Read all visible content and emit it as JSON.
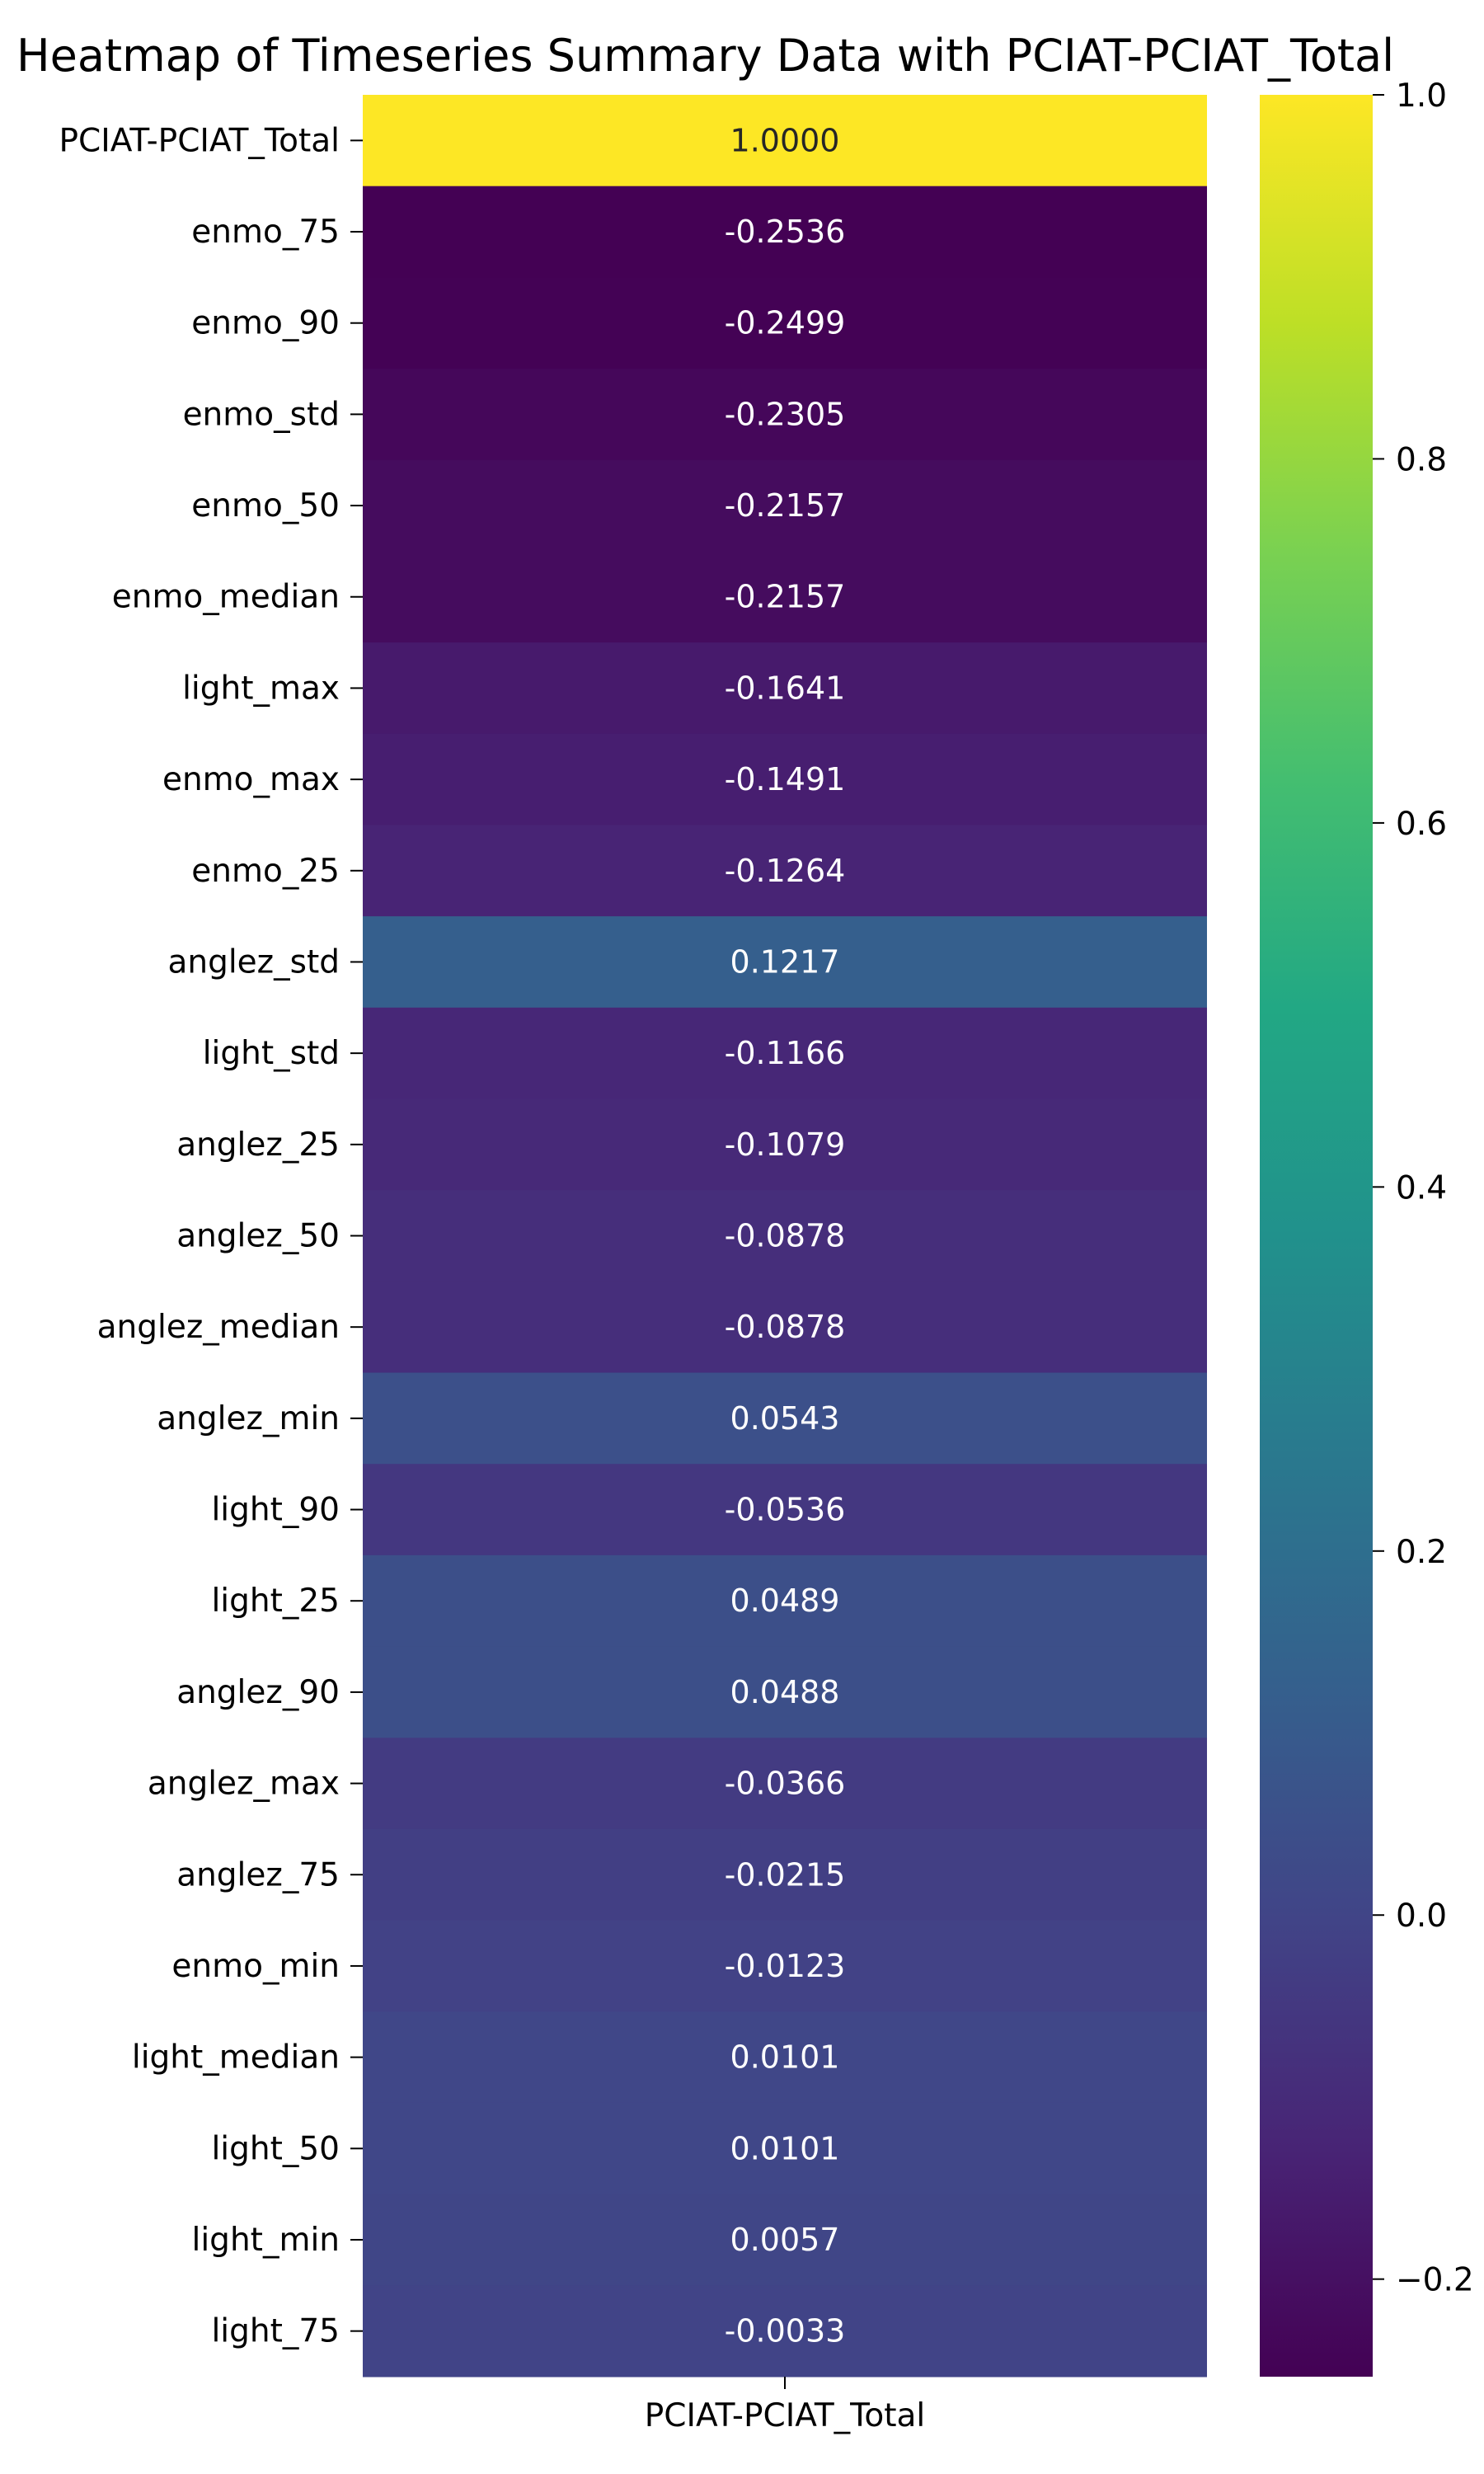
{
  "chart_data": {
    "type": "heatmap",
    "title": "Heatmap of Timeseries Summary Data with PCIAT-PCIAT_Total",
    "xlabel": "",
    "ylabel": "",
    "columns": [
      "PCIAT-PCIAT_Total"
    ],
    "rows": [
      "PCIAT-PCIAT_Total",
      "enmo_75",
      "enmo_90",
      "enmo_std",
      "enmo_50",
      "enmo_median",
      "light_max",
      "enmo_max",
      "enmo_25",
      "anglez_std",
      "light_std",
      "anglez_25",
      "anglez_50",
      "anglez_median",
      "anglez_min",
      "light_90",
      "light_25",
      "anglez_90",
      "anglez_max",
      "anglez_75",
      "enmo_min",
      "light_median",
      "light_50",
      "light_min",
      "light_75"
    ],
    "values": [
      1.0,
      -0.2536,
      -0.2499,
      -0.2305,
      -0.2157,
      -0.2157,
      -0.1641,
      -0.1491,
      -0.1264,
      0.1217,
      -0.1166,
      -0.1079,
      -0.0878,
      -0.0878,
      0.0543,
      -0.0536,
      0.0489,
      0.0488,
      -0.0366,
      -0.0215,
      -0.0123,
      0.0101,
      0.0101,
      0.0057,
      -0.0033
    ],
    "value_labels": [
      "1.0000",
      "-0.2536",
      "-0.2499",
      "-0.2305",
      "-0.2157",
      "-0.2157",
      "-0.1641",
      "-0.1491",
      "-0.1264",
      "0.1217",
      "-0.1166",
      "-0.1079",
      "-0.0878",
      "-0.0878",
      "0.0543",
      "-0.0536",
      "0.0489",
      "0.0488",
      "-0.0366",
      "-0.0215",
      "-0.0123",
      "0.0101",
      "0.0101",
      "0.0057",
      "-0.0033"
    ],
    "colormap": "viridis",
    "color_range": [
      -0.2536,
      1.0
    ],
    "colorbar_ticks": [
      -0.2,
      0.0,
      0.2,
      0.4,
      0.6,
      0.8,
      1.0
    ],
    "colorbar_tick_labels": [
      "−0.2",
      "0.0",
      "0.2",
      "0.4",
      "0.6",
      "0.8",
      "1.0"
    ],
    "grid": false,
    "legend": "colorbar-right"
  }
}
